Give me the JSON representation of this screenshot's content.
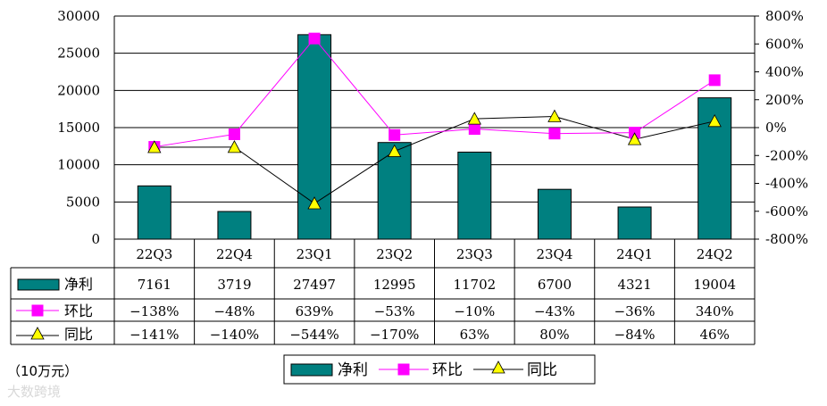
{
  "unit_label": "（10万元）",
  "watermark": "大数跨境",
  "chart_data": {
    "type": "bar",
    "categories": [
      "22Q3",
      "22Q4",
      "23Q1",
      "23Q2",
      "23Q3",
      "23Q4",
      "24Q1",
      "24Q2"
    ],
    "ylim": [
      0,
      30000
    ],
    "y_ticks": [
      0,
      5000,
      10000,
      15000,
      20000,
      25000,
      30000
    ],
    "y2lim": [
      -800,
      800
    ],
    "y2_ticks": [
      -800,
      -600,
      -400,
      -200,
      0,
      200,
      400,
      600,
      800
    ],
    "y2_tick_suffix": "%",
    "grid": true,
    "legend_position": "bottom",
    "series": [
      {
        "name": "净利",
        "type": "bar",
        "axis": "left",
        "color": "#008080",
        "values": [
          7161,
          3719,
          27497,
          12995,
          11702,
          6700,
          4321,
          19004
        ],
        "labels": [
          "7161",
          "3719",
          "27497",
          "12995",
          "11702",
          "6700",
          "4321",
          "19004"
        ]
      },
      {
        "name": "环比",
        "type": "line",
        "axis": "right",
        "color": "#ff00ff",
        "marker": "square",
        "values": [
          -138,
          -48,
          639,
          -53,
          -10,
          -43,
          -36,
          340
        ],
        "labels": [
          "−138%",
          "−48%",
          "639%",
          "−53%",
          "−10%",
          "−43%",
          "−36%",
          "340%"
        ]
      },
      {
        "name": "同比",
        "type": "line",
        "axis": "right",
        "color": "#000000",
        "marker": "triangle",
        "marker_color": "#ffff00",
        "values": [
          -141,
          -140,
          -544,
          -170,
          63,
          80,
          -84,
          46
        ],
        "labels": [
          "−141%",
          "−140%",
          "−544%",
          "−170%",
          "63%",
          "80%",
          "−84%",
          "46%"
        ]
      }
    ]
  }
}
